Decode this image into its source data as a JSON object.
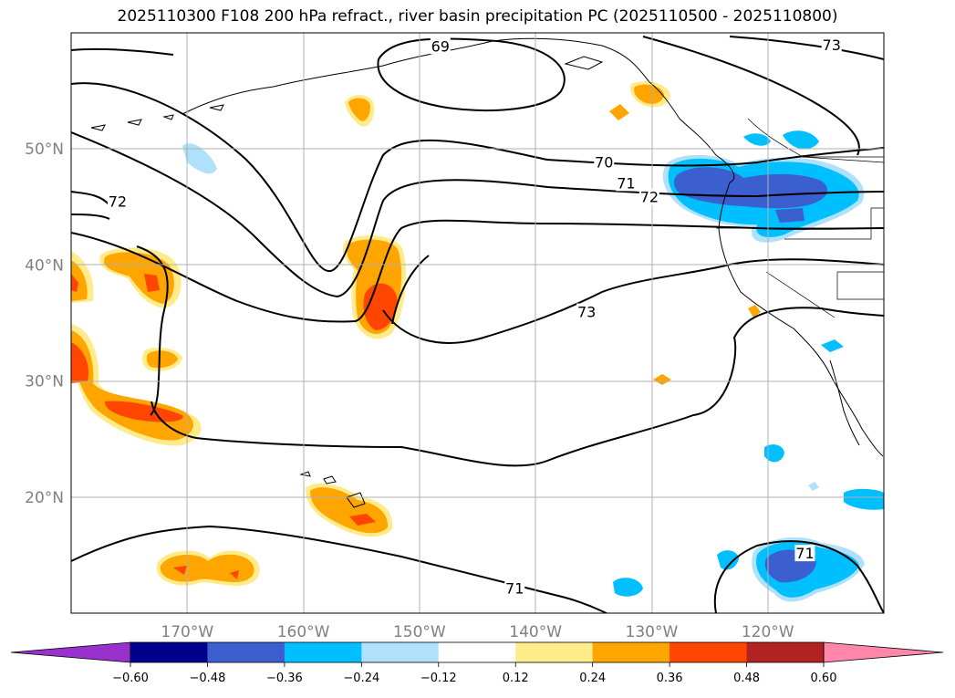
{
  "title": "2025110300 F108 200 hPa refract., river basin precipitation PC (2025110500 - 2025110800)",
  "map": {
    "lon_range": [
      -180,
      -110
    ],
    "lat_range": [
      10,
      60
    ],
    "lon_ticks": [
      {
        "lon": -170,
        "label": "170°W"
      },
      {
        "lon": -160,
        "label": "160°W"
      },
      {
        "lon": -150,
        "label": "150°W"
      },
      {
        "lon": -140,
        "label": "140°W"
      },
      {
        "lon": -130,
        "label": "130°W"
      },
      {
        "lon": -120,
        "label": "120°W"
      }
    ],
    "lat_ticks": [
      {
        "lat": 50,
        "label": "50°N"
      },
      {
        "lat": 40,
        "label": "40°N"
      },
      {
        "lat": 30,
        "label": "30°N"
      },
      {
        "lat": 20,
        "label": "20°N"
      }
    ],
    "grid": true,
    "contour_labels": [
      {
        "text": "69",
        "lon": -148.2,
        "lat": 58.8
      },
      {
        "text": "73",
        "lon": -114.5,
        "lat": 58.9
      },
      {
        "text": "70",
        "lon": -134.1,
        "lat": 48.8
      },
      {
        "text": "71",
        "lon": -132.2,
        "lat": 47.0
      },
      {
        "text": "72",
        "lon": -130.2,
        "lat": 45.8
      },
      {
        "text": "72",
        "lon": -176.0,
        "lat": 45.4
      },
      {
        "text": "73",
        "lon": -135.6,
        "lat": 35.9
      },
      {
        "text": "71",
        "lon": -141.8,
        "lat": 12.1
      },
      {
        "text": "71",
        "lon": -116.8,
        "lat": 15.1
      }
    ]
  },
  "colorbar": {
    "ticks": [
      "−0.60",
      "−0.48",
      "−0.36",
      "−0.24",
      "−0.12",
      "0.12",
      "0.24",
      "0.36",
      "0.48",
      "0.60"
    ],
    "colors": [
      "#9932cc",
      "#00008b",
      "#3b5fcf",
      "#00bfff",
      "#afe1fa",
      "#ffffff",
      "#ffeb8a",
      "#ffa500",
      "#ff4500",
      "#b22222",
      "#ff88aa"
    ]
  }
}
